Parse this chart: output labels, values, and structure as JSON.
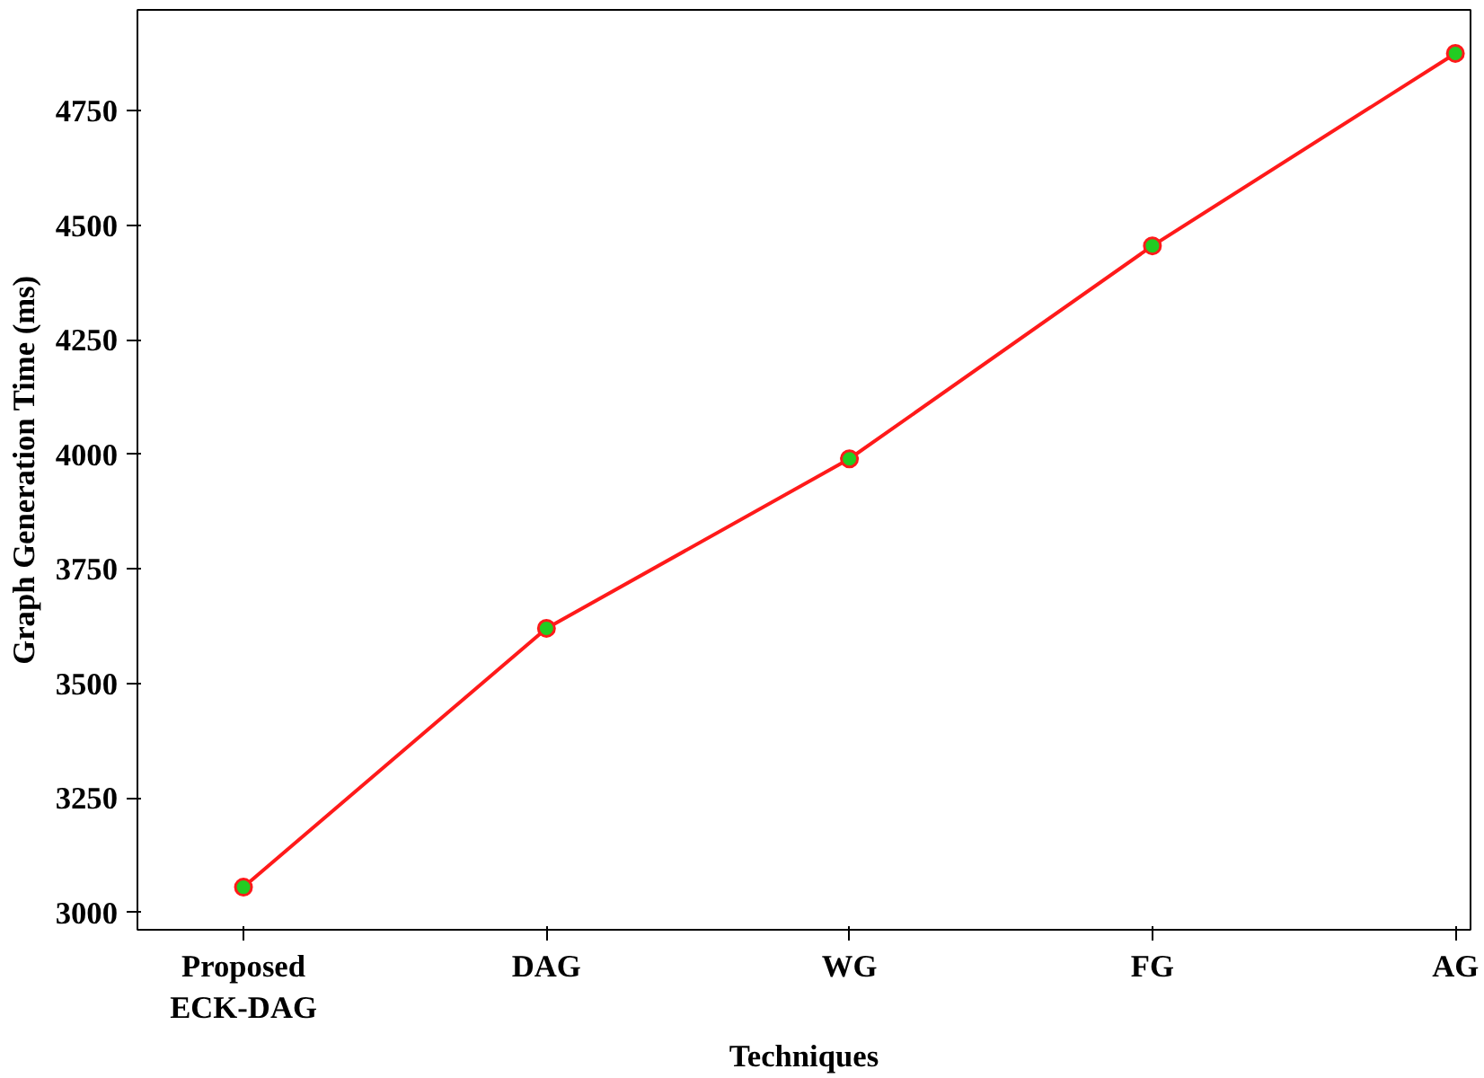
{
  "chart_data": {
    "type": "line",
    "xlabel": "Techniques",
    "ylabel": "Graph Generation Time (ms)",
    "categories": [
      "Proposed\nECK-DAG",
      "DAG",
      "WG",
      "FG",
      "AG"
    ],
    "series": [
      {
        "color": "#ff1a1a",
        "values": [
          3055,
          3620,
          3990,
          4455,
          4875
        ]
      }
    ],
    "colors": [
      "#22cc22",
      "#22cc22",
      "#22cc22",
      "#22cc22",
      "#22cc22"
    ],
    "marker": "circle",
    "line_style": "solid",
    "grid": false,
    "ylim": [
      2962,
      4970
    ],
    "yticks": [
      3000,
      3250,
      3500,
      3750,
      4000,
      4250,
      4500,
      4750
    ]
  }
}
